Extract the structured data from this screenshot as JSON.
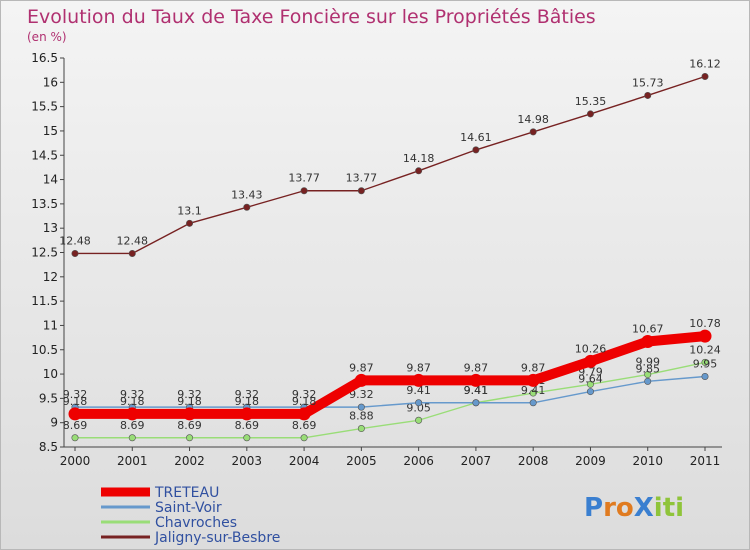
{
  "chart_data": {
    "type": "line",
    "title": "Evolution du Taux de Taxe Foncière sur les Propriétés Bâties",
    "ylabel": "(en %)",
    "x": [
      "2000",
      "2001",
      "2002",
      "2003",
      "2004",
      "2005",
      "2006",
      "2007",
      "2008",
      "2009",
      "2010",
      "2011"
    ],
    "ylim": [
      8.5,
      16.5
    ],
    "yticks": [
      "8.5",
      "9",
      "9.5",
      "10",
      "10.5",
      "11",
      "11.5",
      "12",
      "12.5",
      "13",
      "13.5",
      "14",
      "14.5",
      "15",
      "15.5",
      "16",
      "16.5"
    ],
    "grid": false,
    "legend_position": "bottom-left",
    "series": [
      {
        "name": "TRETEAU",
        "color": "#ee0000",
        "values": [
          9.18,
          9.18,
          9.18,
          9.18,
          9.18,
          9.87,
          9.87,
          9.87,
          9.87,
          10.26,
          10.67,
          10.78
        ],
        "labels": [
          "9.18",
          "9.18",
          "9.18",
          "9.18",
          "9.18",
          "9.87",
          "9.87",
          "9.87",
          "9.87",
          "10.26",
          "10.67",
          "10.78"
        ]
      },
      {
        "name": "Saint-Voir",
        "color": "#6699cc",
        "values": [
          9.32,
          9.32,
          9.32,
          9.32,
          9.32,
          9.32,
          9.41,
          9.41,
          9.41,
          9.64,
          9.85,
          9.95
        ],
        "labels": [
          "9.32",
          "9.32",
          "9.32",
          "9.32",
          "9.32",
          "9.32",
          "9.41",
          "9.41",
          "9.41",
          "9.64",
          "9.85",
          "9.95"
        ]
      },
      {
        "name": "Chavroches",
        "color": "#99dd77",
        "values": [
          8.69,
          8.69,
          8.69,
          8.69,
          8.69,
          8.88,
          9.05,
          9.41,
          9.61,
          9.79,
          9.99,
          10.24
        ],
        "labels": [
          "8.69",
          "8.69",
          "8.69",
          "8.69",
          "8.69",
          "8.88",
          "9.05",
          "9.41",
          "9.61",
          "9.79",
          "9.99",
          "10.24"
        ]
      },
      {
        "name": "Jaligny-sur-Besbre",
        "color": "#772222",
        "values": [
          12.48,
          12.48,
          13.1,
          13.43,
          13.77,
          13.77,
          14.18,
          14.61,
          14.98,
          15.35,
          15.73,
          16.12
        ],
        "labels": [
          "12.48",
          "12.48",
          "13.1",
          "13.43",
          "13.77",
          "13.77",
          "14.18",
          "14.61",
          "14.98",
          "15.35",
          "15.73",
          "16.12"
        ]
      }
    ]
  },
  "logo": {
    "text": "ProXiti"
  }
}
